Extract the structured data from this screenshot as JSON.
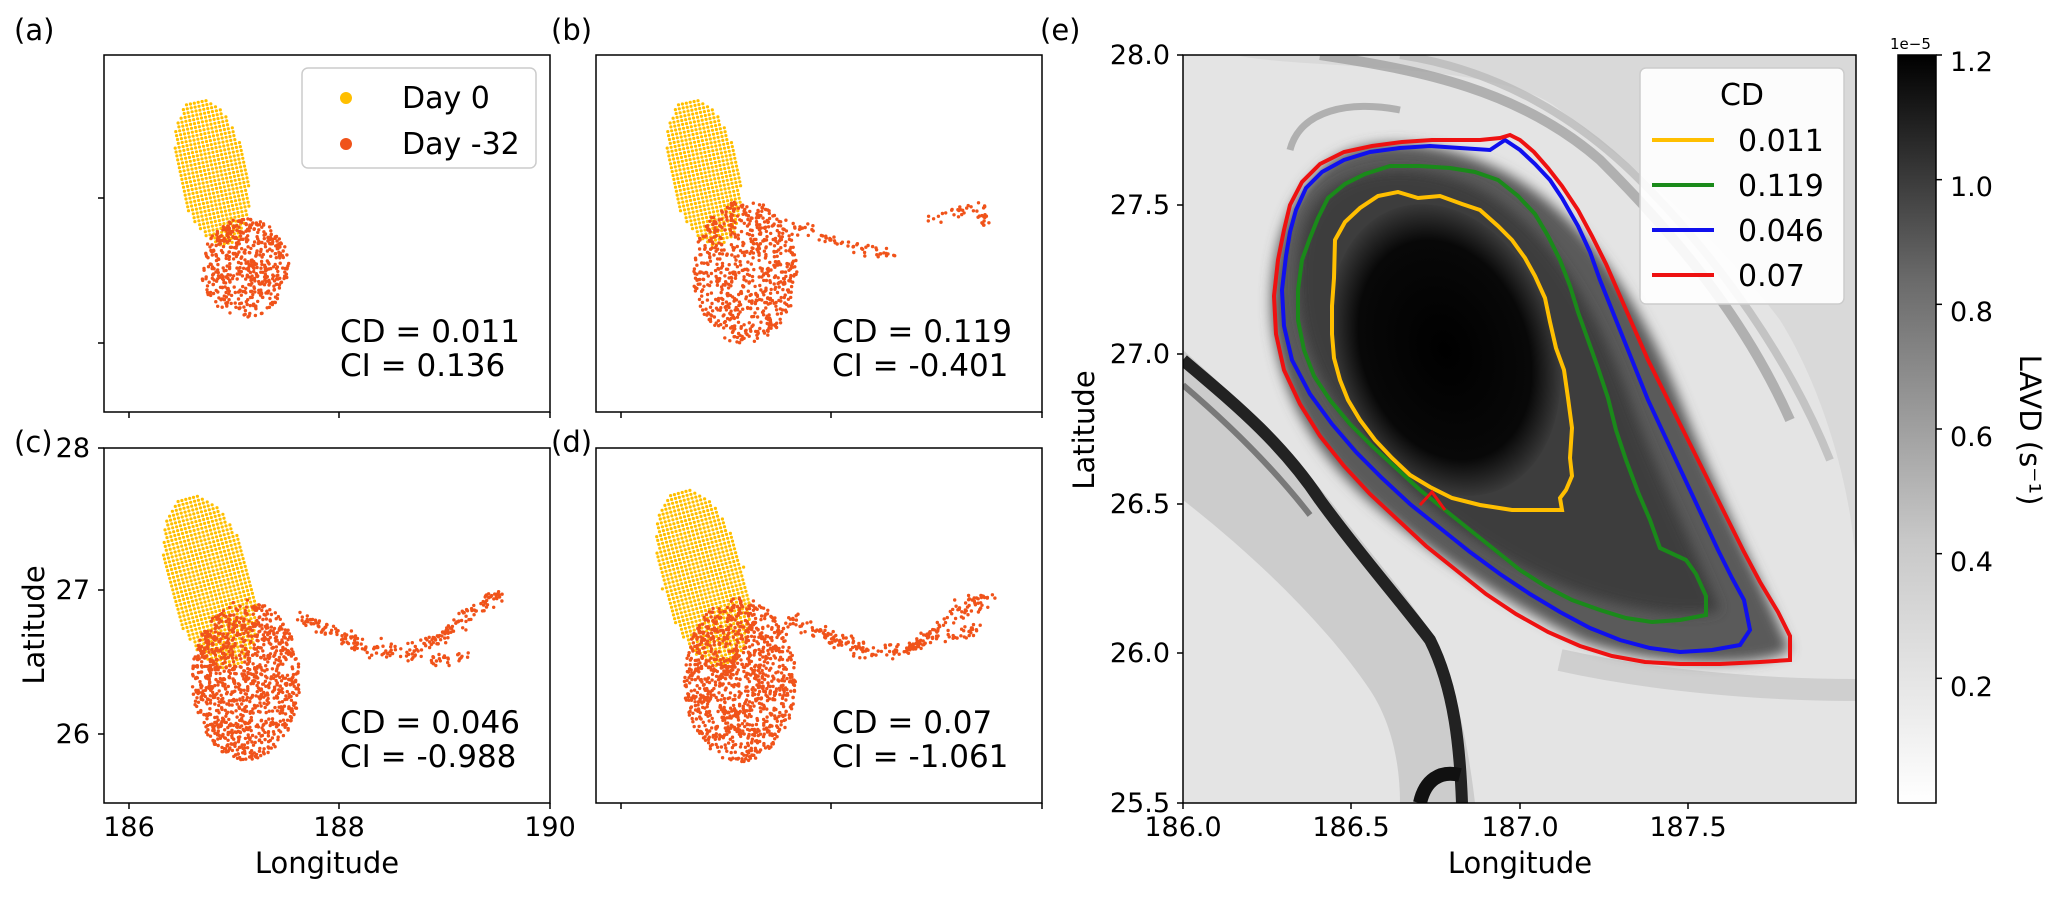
{
  "chart_data": [
    {
      "panel": "(a)",
      "type": "scatter",
      "series": [
        {
          "name": "Day 0",
          "color": "#ffbf00"
        },
        {
          "name": "Day -32",
          "color": "#f0531a"
        }
      ],
      "legend": "upper right",
      "annotation": [
        "CD = 0.011",
        "CI = 0.136"
      ],
      "xlim": [
        185.7,
        190
      ],
      "ylim": [
        25.5,
        28
      ]
    },
    {
      "panel": "(b)",
      "type": "scatter",
      "annotation": [
        "CD = 0.119",
        "CI = -0.401"
      ],
      "xlim": [
        185.7,
        190
      ],
      "ylim": [
        25.5,
        28
      ]
    },
    {
      "panel": "(c)",
      "type": "scatter",
      "annotation": [
        "CD = 0.046",
        "CI = -0.988"
      ],
      "xlabel": "Longitude",
      "ylabel": "Latitude",
      "xticks": [
        "186",
        "188",
        "190"
      ],
      "yticks": [
        "26",
        "27",
        "28"
      ],
      "xlim": [
        185.7,
        190
      ],
      "ylim": [
        25.5,
        28
      ]
    },
    {
      "panel": "(d)",
      "type": "scatter",
      "annotation": [
        "CD = 0.07",
        "CI = -1.061"
      ],
      "xlim": [
        185.7,
        190
      ],
      "ylim": [
        25.5,
        28
      ]
    },
    {
      "panel": "(e)",
      "type": "heatmap",
      "xlabel": "Longitude",
      "ylabel": "Latitude",
      "xlim": [
        186.0,
        188.0
      ],
      "ylim": [
        25.5,
        28.0
      ],
      "xticks": [
        "186.0",
        "186.5",
        "187.0",
        "187.5"
      ],
      "yticks": [
        "25.5",
        "26.0",
        "26.5",
        "27.0",
        "27.5",
        "28.0"
      ],
      "colormap": "grayscale (white to black)",
      "colorbar": {
        "label": "LAVD (s⁻¹)",
        "exponent": "1e−5",
        "ticks": [
          "0.2",
          "0.4",
          "0.6",
          "0.8",
          "1.0",
          "1.2"
        ],
        "range": [
          0.0,
          1.2
        ]
      },
      "legend_title": "CD",
      "legend": "upper right",
      "contours": [
        {
          "label": "0.011",
          "color": "#ffbf00"
        },
        {
          "label": "0.119",
          "color": "#1a8a1a"
        },
        {
          "label": "0.046",
          "color": "#1010ee"
        },
        {
          "label": "0.07",
          "color": "#ee1111"
        }
      ]
    }
  ]
}
